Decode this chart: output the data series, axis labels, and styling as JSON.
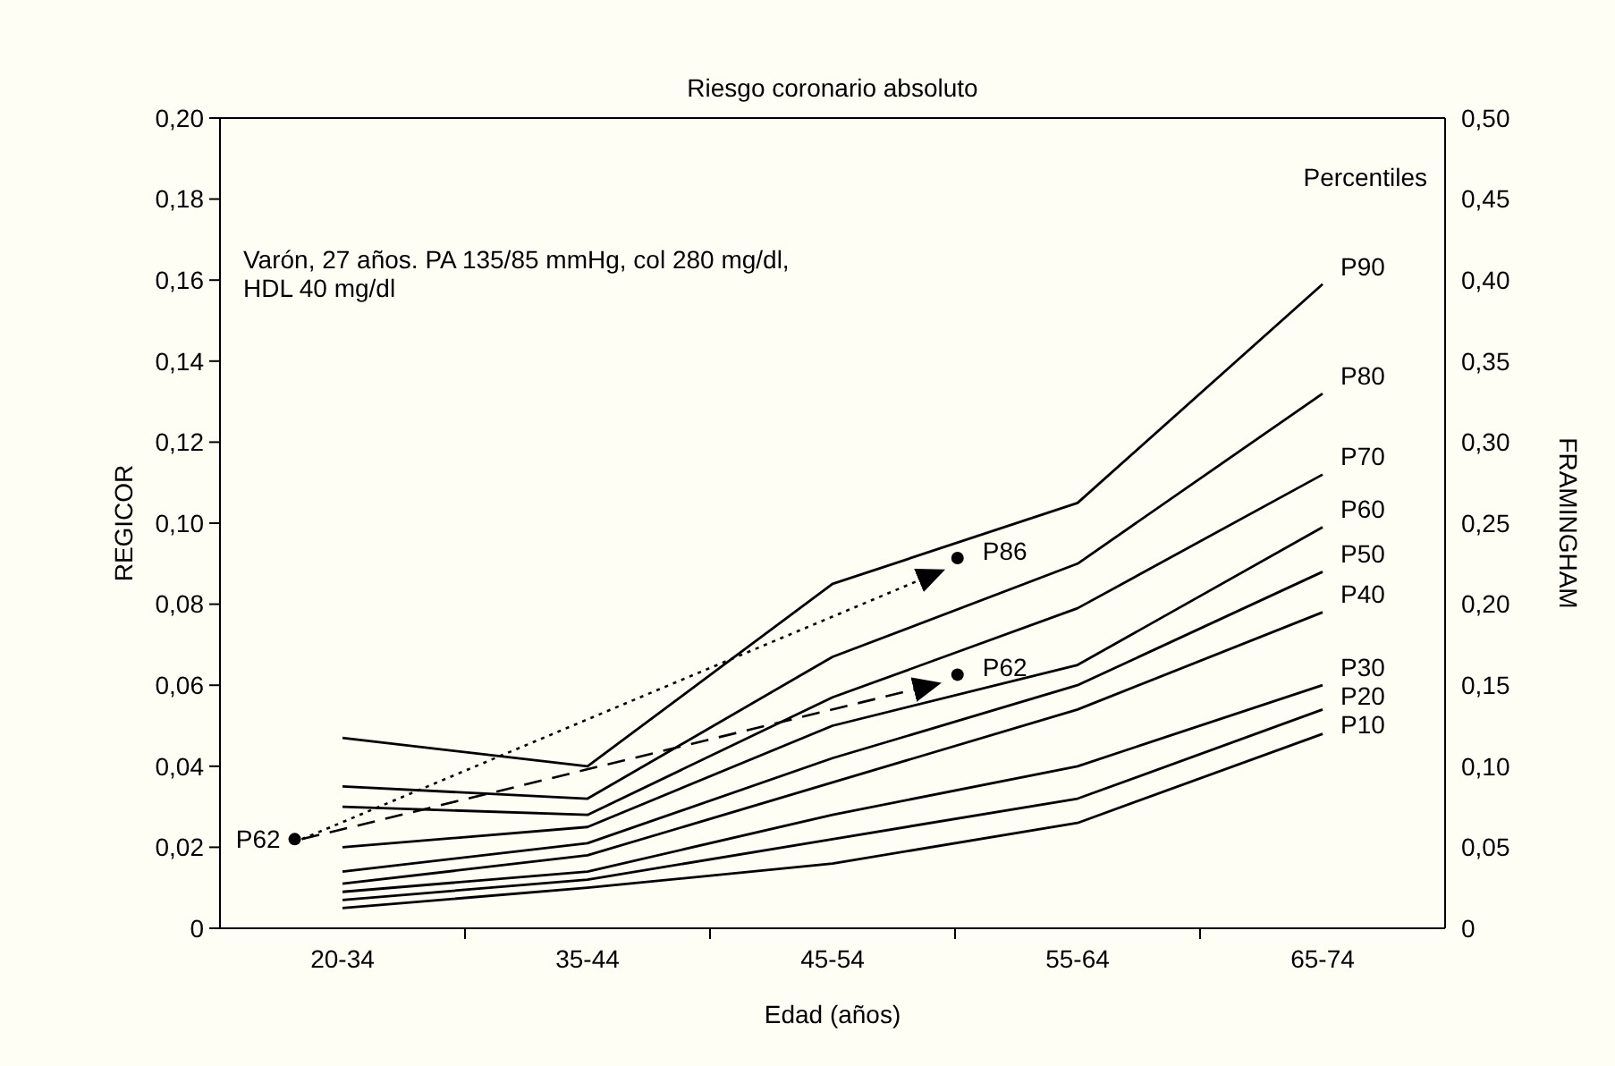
{
  "chart_data": {
    "type": "line",
    "title": "Riesgo coronario absoluto",
    "xlabel": "Edad (años)",
    "ylabel": "REGICOR",
    "y2label": "FRAMINGHAM",
    "legend_title": "Percentiles",
    "categories": [
      "20-34",
      "35-44",
      "45-54",
      "55-64",
      "65-74"
    ],
    "ylim": [
      0,
      0.2
    ],
    "yticks": [
      0,
      {
        "value": 0.02,
        "label": "0,02"
      },
      {
        "value": 0.04,
        "label": "0,04"
      },
      {
        "value": 0.06,
        "label": "0,06"
      },
      {
        "value": 0.08,
        "label": "0,08"
      },
      {
        "value": 0.1,
        "label": "0,10"
      },
      {
        "value": 0.12,
        "label": "0,12"
      },
      {
        "value": 0.14,
        "label": "0,14"
      },
      {
        "value": 0.16,
        "label": "0,16"
      },
      {
        "value": 0.18,
        "label": "0,18"
      },
      {
        "value": 0.2,
        "label": "0,20"
      }
    ],
    "y2lim": [
      0,
      0.5
    ],
    "y2ticks": [
      0,
      {
        "value": 0.05,
        "label": "0,05"
      },
      {
        "value": 0.1,
        "label": "0,10"
      },
      {
        "value": 0.15,
        "label": "0,15"
      },
      {
        "value": 0.2,
        "label": "0,20"
      },
      {
        "value": 0.25,
        "label": "0,25"
      },
      {
        "value": 0.3,
        "label": "0,30"
      },
      {
        "value": 0.35,
        "label": "0,35"
      },
      {
        "value": 0.4,
        "label": "0,40"
      },
      {
        "value": 0.45,
        "label": "0,45"
      },
      {
        "value": 0.5,
        "label": "0,50"
      }
    ],
    "grid": false,
    "line_style": "solid",
    "series": [
      {
        "name": "P90",
        "color": "#000000",
        "values": [
          0.047,
          0.04,
          0.085,
          0.105,
          0.159
        ]
      },
      {
        "name": "P80",
        "color": "#000000",
        "values": [
          0.035,
          0.032,
          0.067,
          0.09,
          0.132
        ]
      },
      {
        "name": "P70",
        "color": "#000000",
        "values": [
          0.03,
          0.028,
          0.057,
          0.079,
          0.112
        ]
      },
      {
        "name": "P60",
        "color": "#000000",
        "values": [
          0.02,
          0.025,
          0.05,
          0.065,
          0.099
        ]
      },
      {
        "name": "P50",
        "color": "#000000",
        "values": [
          0.014,
          0.021,
          0.042,
          0.06,
          0.088
        ]
      },
      {
        "name": "P40",
        "color": "#000000",
        "values": [
          0.011,
          0.018,
          0.036,
          0.054,
          0.078
        ]
      },
      {
        "name": "P30",
        "color": "#000000",
        "values": [
          0.009,
          0.014,
          0.028,
          0.04,
          0.06
        ]
      },
      {
        "name": "P20",
        "color": "#000000",
        "values": [
          0.007,
          0.012,
          0.022,
          0.032,
          0.054
        ]
      },
      {
        "name": "P10",
        "color": "#000000",
        "values": [
          0.005,
          0.01,
          0.016,
          0.026,
          0.048
        ]
      }
    ],
    "annotations": [
      "Varón, 27 años. PA 135/85 mmHg, col 280 mg/dl,\nHDL 40 mg/dl",
      "P62",
      "P86",
      "P62"
    ]
  }
}
